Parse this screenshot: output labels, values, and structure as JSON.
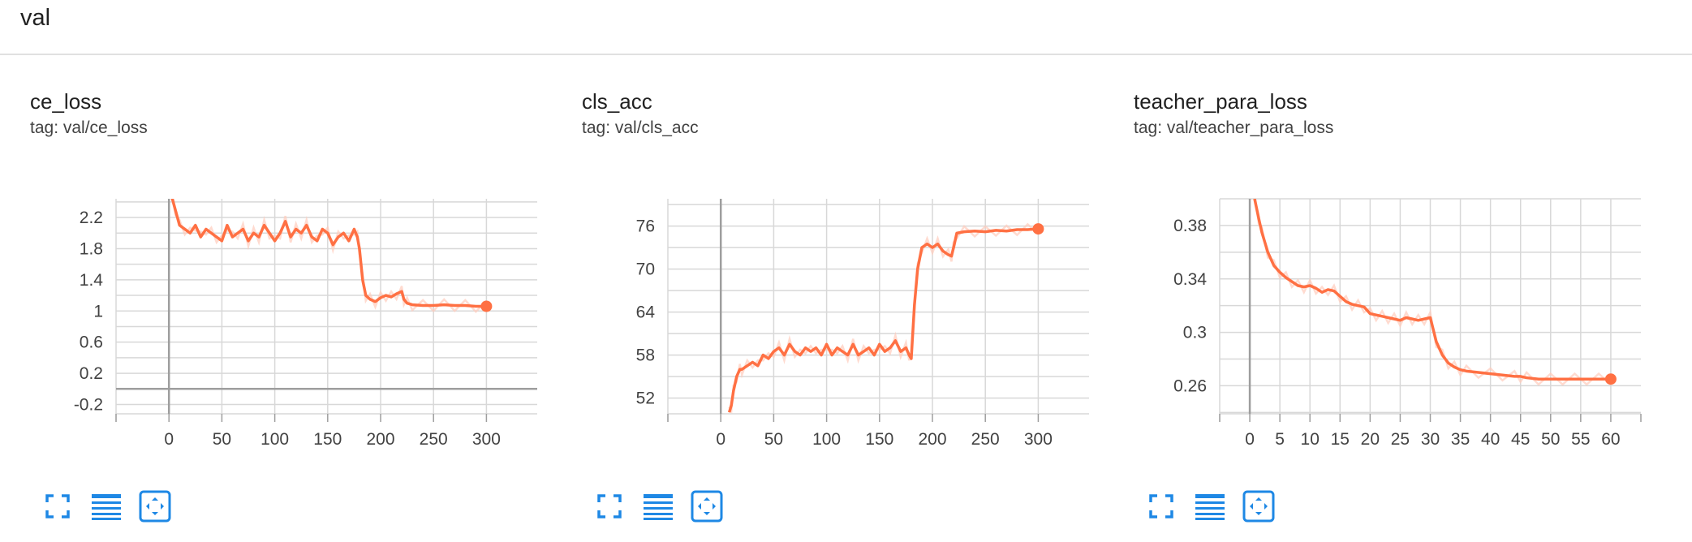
{
  "section": {
    "title": "val"
  },
  "colors": {
    "accent": "#ff7043",
    "raw": "#ffccbc",
    "grid": "#d8d8d8",
    "axis": "#9e9e9e",
    "icon": "#1e88e5"
  },
  "icons": [
    "fullscreen-icon",
    "data-table-icon",
    "fit-domain-icon"
  ],
  "cards": [
    {
      "title": "ce_loss",
      "tag": "tag: val/ce_loss",
      "chart_data": {
        "type": "line",
        "xlim": [
          -50,
          348
        ],
        "ylim": [
          -0.32,
          2.44
        ],
        "xticks": [
          0,
          50,
          100,
          150,
          200,
          250,
          300
        ],
        "yticks": [
          -0.2,
          0.2,
          0.6,
          1,
          1.4,
          1.8,
          2.2
        ],
        "ytick_labels": [
          "-0.2",
          "0.2",
          "0.6",
          "1",
          "1.4",
          "1.8",
          "2.2"
        ],
        "grid": true,
        "series": [
          {
            "x": [
              3,
              6,
              10,
              15,
              20,
              25,
              30,
              35,
              40,
              45,
              50,
              55,
              60,
              65,
              70,
              75,
              80,
              85,
              90,
              95,
              100,
              105,
              110,
              115,
              120,
              125,
              130,
              135,
              140,
              145,
              150,
              155,
              160,
              165,
              170,
              175,
              178,
              180,
              183,
              186,
              190,
              195,
              200,
              205,
              210,
              215,
              220,
              222,
              225,
              230,
              240,
              250,
              260,
              270,
              280,
              290,
              300
            ],
            "y": [
              2.45,
              2.3,
              2.1,
              2.05,
              2.0,
              2.1,
              1.95,
              2.05,
              2.0,
              1.95,
              1.9,
              2.1,
              1.95,
              2.0,
              2.05,
              1.9,
              2.0,
              1.95,
              2.1,
              2.0,
              1.9,
              2.0,
              2.15,
              1.95,
              2.05,
              2.0,
              2.1,
              1.95,
              1.9,
              2.05,
              2.0,
              1.85,
              1.95,
              2.0,
              1.9,
              2.05,
              1.95,
              1.8,
              1.4,
              1.2,
              1.15,
              1.12,
              1.17,
              1.2,
              1.18,
              1.22,
              1.25,
              1.15,
              1.1,
              1.08,
              1.07,
              1.07,
              1.08,
              1.07,
              1.07,
              1.06,
              1.06
            ]
          }
        ]
      }
    },
    {
      "title": "cls_acc",
      "tag": "tag: val/cls_acc",
      "chart_data": {
        "type": "line",
        "xlim": [
          -50,
          348
        ],
        "ylim": [
          49.8,
          79.8
        ],
        "xticks": [
          0,
          50,
          100,
          150,
          200,
          250,
          300
        ],
        "yticks": [
          52,
          58,
          64,
          70,
          76
        ],
        "ytick_labels": [
          "52",
          "58",
          "64",
          "70",
          "76"
        ],
        "grid": true,
        "series": [
          {
            "x": [
              8,
              10,
              12,
              15,
              18,
              20,
              25,
              30,
              35,
              40,
              45,
              50,
              55,
              60,
              65,
              70,
              75,
              80,
              85,
              90,
              95,
              100,
              105,
              110,
              115,
              120,
              125,
              130,
              135,
              140,
              145,
              150,
              155,
              160,
              165,
              170,
              175,
              178,
              180,
              183,
              186,
              190,
              195,
              200,
              205,
              210,
              215,
              218,
              220,
              223,
              230,
              240,
              250,
              260,
              270,
              280,
              290,
              300
            ],
            "y": [
              50.0,
              51.0,
              53.0,
              55.0,
              56.0,
              56.0,
              56.5,
              57.0,
              56.5,
              58.0,
              57.5,
              58.5,
              59.0,
              58.0,
              59.5,
              58.5,
              58.0,
              59.0,
              58.5,
              59.0,
              58.0,
              59.5,
              58.0,
              59.0,
              58.5,
              58.0,
              59.5,
              58.0,
              58.5,
              59.0,
              58.0,
              59.5,
              58.5,
              59.0,
              60.0,
              58.5,
              59.0,
              58.0,
              57.5,
              65.0,
              70.0,
              73.0,
              73.5,
              73.0,
              73.5,
              72.5,
              72.0,
              71.8,
              73.0,
              75.0,
              75.2,
              75.3,
              75.2,
              75.4,
              75.3,
              75.5,
              75.5,
              75.6
            ]
          }
        ]
      }
    },
    {
      "title": "teacher_para_loss",
      "tag": "tag: val/teacher_para_loss",
      "chart_data": {
        "type": "line",
        "xlim": [
          -5,
          65
        ],
        "ylim": [
          0.239,
          0.4
        ],
        "xticks": [
          0,
          5,
          10,
          15,
          20,
          25,
          30,
          35,
          40,
          45,
          50,
          55,
          60
        ],
        "yticks": [
          0.26,
          0.3,
          0.34,
          0.38
        ],
        "ytick_labels": [
          "0.26",
          "0.3",
          "0.34",
          "0.38"
        ],
        "grid": true,
        "series": [
          {
            "x": [
              0.8,
              1.5,
              2,
              3,
              4,
              5,
              6,
              7,
              8,
              9,
              10,
              11,
              12,
              13,
              14,
              15,
              16,
              17,
              18,
              19,
              20,
              21,
              22,
              23,
              24,
              25,
              26,
              27,
              28,
              29,
              30,
              31,
              32,
              33,
              34,
              35,
              36,
              38,
              40,
              42,
              44,
              45,
              46,
              48,
              50,
              52,
              54,
              56,
              58,
              60
            ],
            "y": [
              0.4,
              0.385,
              0.375,
              0.36,
              0.35,
              0.345,
              0.341,
              0.338,
              0.335,
              0.334,
              0.335,
              0.333,
              0.33,
              0.332,
              0.331,
              0.327,
              0.323,
              0.321,
              0.32,
              0.319,
              0.314,
              0.313,
              0.312,
              0.311,
              0.31,
              0.309,
              0.311,
              0.31,
              0.309,
              0.31,
              0.311,
              0.293,
              0.283,
              0.277,
              0.274,
              0.272,
              0.271,
              0.27,
              0.269,
              0.268,
              0.267,
              0.267,
              0.266,
              0.265,
              0.265,
              0.265,
              0.265,
              0.265,
              0.265,
              0.265
            ]
          }
        ]
      }
    }
  ]
}
